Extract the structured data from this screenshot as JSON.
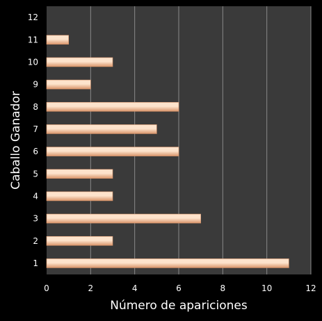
{
  "chart_data": {
    "type": "bar",
    "orientation": "horizontal",
    "title": "",
    "xlabel": "Número de apariciones",
    "ylabel": "Caballo Ganador",
    "categories": [
      "1",
      "2",
      "3",
      "4",
      "5",
      "6",
      "7",
      "8",
      "9",
      "10",
      "11",
      "12"
    ],
    "series": [
      {
        "values": [
          11,
          3,
          7,
          3,
          3,
          6,
          5,
          6,
          2,
          3,
          1,
          null
        ]
      }
    ],
    "xlim": [
      0,
      12
    ],
    "xticks": [
      "0",
      "2",
      "4",
      "6",
      "8",
      "10",
      "12"
    ],
    "grid": "vertical",
    "legend": "none",
    "colors": {
      "background": "#000000",
      "plot_area": "#3a3a3a",
      "gridline": "#8a8a8a",
      "bar_light": "#fde3cc",
      "bar_dark": "#d9956b",
      "text": "#ffffff"
    }
  }
}
